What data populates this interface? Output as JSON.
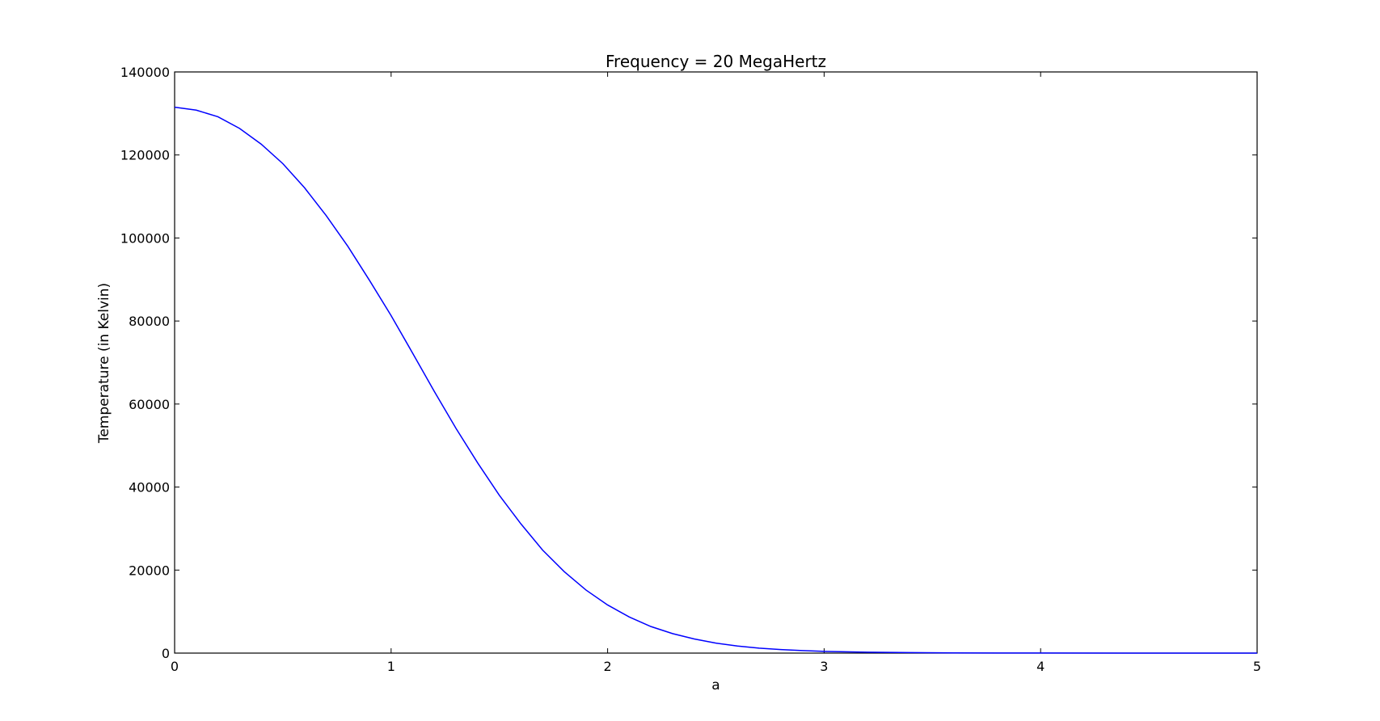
{
  "chart_data": {
    "type": "line",
    "title": "Frequency = 20 MegaHertz",
    "xlabel": "a",
    "ylabel": "Temperature (in Kelvin)",
    "xlim": [
      0,
      5
    ],
    "ylim": [
      0,
      140000
    ],
    "x_ticks": [
      "0",
      "1",
      "2",
      "3",
      "4",
      "5"
    ],
    "y_ticks": [
      "0",
      "20000",
      "40000",
      "60000",
      "80000",
      "100000",
      "120000",
      "140000"
    ],
    "grid": false,
    "legend": "none",
    "line_color": "#0000ff",
    "series": [
      {
        "x": [
          0,
          0.1,
          0.2,
          0.3,
          0.4,
          0.5,
          0.6,
          0.7,
          0.8,
          0.9,
          1.0,
          1.1,
          1.2,
          1.3,
          1.4,
          1.5,
          1.6,
          1.7,
          1.8,
          1.9,
          2.0,
          2.1,
          2.2,
          2.3,
          2.4,
          2.5,
          2.6,
          2.7,
          2.8,
          2.9,
          3.0,
          3.2,
          3.4,
          3.6,
          3.8,
          4.0,
          4.5,
          5.0
        ],
        "y": [
          131500,
          130800,
          129200,
          126400,
          122600,
          117900,
          112100,
          105400,
          98000,
          89800,
          81300,
          72200,
          63000,
          54100,
          45800,
          38000,
          31100,
          24800,
          19600,
          15200,
          11600,
          8700,
          6400,
          4700,
          3400,
          2400,
          1700,
          1200,
          850,
          600,
          420,
          230,
          120,
          60,
          30,
          15,
          5,
          0
        ]
      }
    ]
  }
}
